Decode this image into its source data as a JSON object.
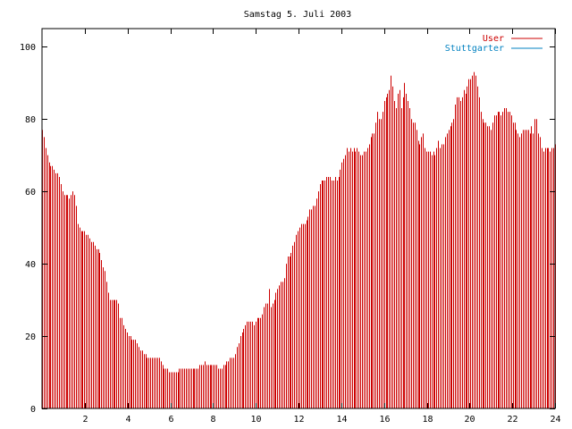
{
  "chart_data": {
    "type": "bar",
    "title": "Samstag 5. Juli 2003",
    "xlabel": "",
    "ylabel": "",
    "xlim": [
      0,
      24
    ],
    "ylim": [
      0,
      105
    ],
    "x_ticks": [
      2,
      4,
      6,
      8,
      10,
      12,
      14,
      16,
      18,
      20,
      22,
      24
    ],
    "y_ticks": [
      0,
      20,
      40,
      60,
      80,
      100
    ],
    "legend_position": "top-right",
    "grid": false,
    "series": [
      {
        "name": "User",
        "color": "#cc0000",
        "x_step_hours": 0.0833,
        "values": [
          77,
          75,
          72,
          70,
          68,
          67,
          67,
          66,
          65,
          65,
          64,
          62,
          60,
          59,
          59,
          59,
          58,
          59,
          60,
          59,
          56,
          51,
          50,
          49,
          49,
          49,
          48,
          48,
          47,
          46,
          46,
          45,
          44,
          44,
          43,
          41,
          39,
          38,
          35,
          32,
          30,
          30,
          30,
          30,
          30,
          29,
          25,
          25,
          23,
          22,
          21,
          20,
          20,
          19,
          19,
          19,
          18,
          17,
          16,
          16,
          15,
          15,
          14,
          14,
          14,
          14,
          14,
          14,
          14,
          14,
          13,
          12,
          11,
          11,
          11,
          10,
          10,
          10,
          10,
          10,
          10,
          11,
          11,
          11,
          11,
          11,
          11,
          11,
          11,
          11,
          11,
          11,
          11,
          12,
          12,
          12,
          13,
          12,
          12,
          12,
          12,
          12,
          12,
          12,
          11,
          11,
          11,
          12,
          12,
          13,
          13,
          14,
          14,
          14,
          15,
          17,
          18,
          20,
          21,
          22,
          23,
          24,
          24,
          24,
          24,
          23,
          24,
          25,
          25,
          25,
          26,
          28,
          29,
          29,
          33,
          28,
          29,
          30,
          32,
          33,
          34,
          35,
          35,
          36,
          40,
          42,
          42,
          43,
          45,
          46,
          48,
          49,
          50,
          51,
          51,
          51,
          52,
          53,
          55,
          55,
          56,
          56,
          58,
          60,
          62,
          63,
          63,
          63,
          64,
          64,
          64,
          63,
          63,
          64,
          63,
          64,
          66,
          68,
          69,
          70,
          72,
          71,
          72,
          71,
          72,
          71,
          72,
          71,
          70,
          70,
          71,
          71,
          72,
          73,
          75,
          76,
          76,
          79,
          82,
          80,
          80,
          82,
          85,
          86,
          87,
          88,
          92,
          89,
          85,
          83,
          87,
          88,
          83,
          86,
          90,
          87,
          85,
          83,
          80,
          79,
          79,
          77,
          74,
          73,
          75,
          76,
          72,
          71,
          71,
          71,
          70,
          71,
          70,
          72,
          74,
          72,
          73,
          73,
          75,
          76,
          77,
          78,
          79,
          80,
          84,
          86,
          86,
          85,
          86,
          88,
          87,
          89,
          91,
          91,
          92,
          93,
          92,
          89,
          86,
          82,
          80,
          79,
          79,
          78,
          78,
          77,
          79,
          81,
          81,
          82,
          82,
          81,
          82,
          83,
          83,
          82,
          82,
          81,
          79,
          79,
          77,
          76,
          75,
          76,
          77,
          77,
          77,
          77,
          76,
          78,
          76,
          80,
          80,
          76,
          75,
          72,
          71,
          72,
          72,
          72,
          71,
          72,
          72,
          73
        ]
      },
      {
        "name": "Stuttgarter",
        "color": "#0080c0",
        "values": []
      }
    ]
  }
}
